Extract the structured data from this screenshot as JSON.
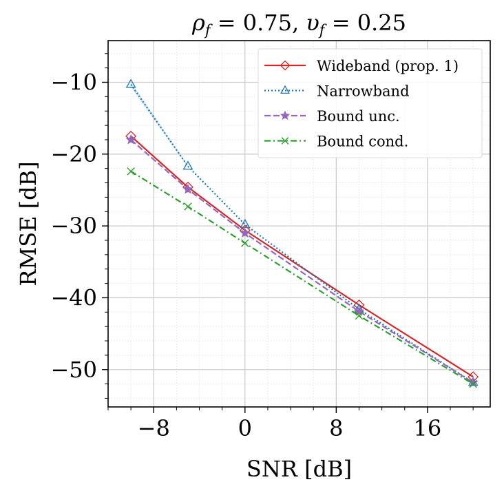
{
  "chart_data": {
    "type": "line",
    "title": "ρ_f = 0.75, υ_f = 0.25",
    "title_parts": {
      "a_sym": "ρ",
      "a_sub": "f",
      "a_val": " = 0.75, ",
      "b_sym": "υ",
      "b_sub": "f",
      "b_val": " = 0.25"
    },
    "xlabel": "SNR [dB]",
    "ylabel": "RMSE [dB]",
    "xlim": [
      -12,
      21.5
    ],
    "ylim": [
      -55.2,
      -4.2
    ],
    "xticks": [
      -8,
      0,
      8,
      16
    ],
    "xtick_labels": [
      "−8",
      "0",
      "8",
      "16"
    ],
    "yticks": [
      -50,
      -40,
      -30,
      -20,
      -10
    ],
    "ytick_labels": [
      "−50",
      "−40",
      "−30",
      "−20",
      "−10"
    ],
    "grid": true,
    "legend_position": "top-right",
    "series": [
      {
        "name": "Wideband (prop. 1)",
        "color": "#d62728",
        "dash": "solid",
        "marker": "diamond",
        "x": [
          -10,
          -5,
          0,
          10,
          20
        ],
        "y": [
          -17.5,
          -24.6,
          -30.6,
          -41.0,
          -51.0
        ]
      },
      {
        "name": "Narrowband",
        "color": "#1f77b4",
        "dash": "dotted",
        "marker": "triangle",
        "x": [
          -10,
          -5,
          0,
          10,
          20
        ],
        "y": [
          -10.3,
          -21.7,
          -29.8,
          -41.6,
          -51.8
        ]
      },
      {
        "name": "Bound unc.",
        "color": "#9467bd",
        "dash": "dashed",
        "marker": "star",
        "x": [
          -10,
          -5,
          0,
          10,
          20
        ],
        "y": [
          -18.0,
          -24.9,
          -31.0,
          -41.9,
          -51.8
        ]
      },
      {
        "name": "Bound cond.",
        "color": "#2ca02c",
        "dash": "dashdot",
        "marker": "x",
        "x": [
          -10,
          -5,
          0,
          10,
          20
        ],
        "y": [
          -22.4,
          -27.3,
          -32.4,
          -42.5,
          -52.0
        ]
      }
    ]
  }
}
